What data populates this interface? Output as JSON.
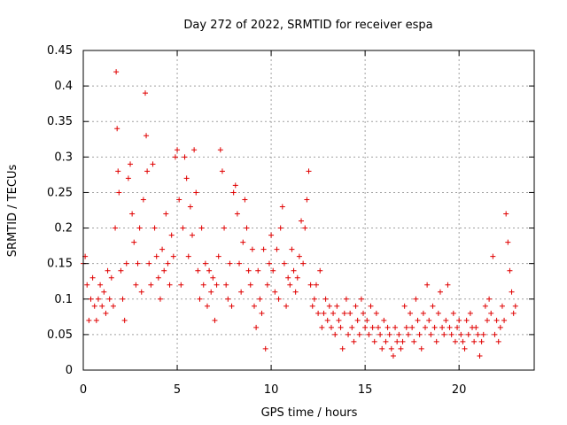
{
  "chart_data": {
    "type": "scatter",
    "title": "Day 272 of 2022, SRMTID for receiver espa",
    "xlabel": "GPS time / hours",
    "ylabel": "SRMTID / TECUs",
    "xlim": [
      0,
      24
    ],
    "ylim": [
      0,
      0.45
    ],
    "xticks": [
      0,
      5,
      10,
      15,
      20
    ],
    "xtick_labels": [
      "0",
      "5",
      "10",
      "15",
      "20"
    ],
    "yticks": [
      0,
      0.05,
      0.1,
      0.15,
      0.2,
      0.25,
      0.3,
      0.35,
      0.4,
      0.45
    ],
    "ytick_labels": [
      "0",
      "0.05",
      "0.1",
      "0.15",
      "0.2",
      "0.25",
      "0.3",
      "0.35",
      "0.4",
      "0.45"
    ],
    "grid": true,
    "marker": "+",
    "color": "#e00000",
    "series": [
      {
        "name": "SRMTID",
        "x": [
          0.0,
          0.1,
          0.2,
          0.3,
          0.4,
          0.5,
          0.6,
          0.7,
          0.8,
          0.9,
          1.0,
          1.1,
          1.2,
          1.3,
          1.4,
          1.5,
          1.6,
          1.7,
          1.75,
          1.8,
          1.85,
          1.9,
          2.0,
          2.1,
          2.2,
          2.3,
          2.4,
          2.5,
          2.6,
          2.7,
          2.8,
          2.9,
          3.0,
          3.1,
          3.2,
          3.3,
          3.35,
          3.4,
          3.5,
          3.6,
          3.7,
          3.8,
          3.9,
          4.0,
          4.1,
          4.2,
          4.3,
          4.4,
          4.5,
          4.6,
          4.7,
          4.8,
          4.9,
          5.0,
          5.1,
          5.2,
          5.3,
          5.4,
          5.5,
          5.6,
          5.7,
          5.8,
          5.9,
          6.0,
          6.1,
          6.2,
          6.3,
          6.4,
          6.5,
          6.6,
          6.7,
          6.8,
          6.9,
          7.0,
          7.1,
          7.2,
          7.3,
          7.4,
          7.5,
          7.6,
          7.7,
          7.8,
          7.9,
          8.0,
          8.1,
          8.2,
          8.3,
          8.4,
          8.5,
          8.6,
          8.7,
          8.8,
          8.9,
          9.0,
          9.1,
          9.2,
          9.3,
          9.4,
          9.5,
          9.6,
          9.7,
          9.8,
          9.9,
          10.0,
          10.1,
          10.2,
          10.3,
          10.4,
          10.5,
          10.6,
          10.7,
          10.8,
          10.9,
          11.0,
          11.1,
          11.2,
          11.3,
          11.4,
          11.5,
          11.6,
          11.7,
          11.8,
          11.9,
          12.0,
          12.1,
          12.2,
          12.3,
          12.4,
          12.5,
          12.6,
          12.7,
          12.8,
          12.9,
          13.0,
          13.1,
          13.2,
          13.3,
          13.4,
          13.5,
          13.6,
          13.7,
          13.8,
          13.9,
          14.0,
          14.1,
          14.2,
          14.3,
          14.4,
          14.5,
          14.6,
          14.7,
          14.8,
          14.9,
          15.0,
          15.1,
          15.2,
          15.3,
          15.4,
          15.5,
          15.6,
          15.7,
          15.8,
          15.9,
          16.0,
          16.1,
          16.2,
          16.3,
          16.4,
          16.5,
          16.6,
          16.7,
          16.8,
          16.9,
          17.0,
          17.1,
          17.2,
          17.3,
          17.4,
          17.5,
          17.6,
          17.7,
          17.8,
          17.9,
          18.0,
          18.1,
          18.2,
          18.3,
          18.4,
          18.5,
          18.6,
          18.7,
          18.8,
          18.9,
          19.0,
          19.1,
          19.2,
          19.3,
          19.4,
          19.5,
          19.6,
          19.7,
          19.8,
          19.9,
          20.0,
          20.1,
          20.2,
          20.3,
          20.4,
          20.5,
          20.6,
          20.7,
          20.8,
          20.9,
          21.0,
          21.1,
          21.2,
          21.3,
          21.4,
          21.5,
          21.6,
          21.7,
          21.8,
          21.9,
          22.0,
          22.1,
          22.2,
          22.3,
          22.4,
          22.5,
          22.6,
          22.7,
          22.8,
          22.9,
          23.0
        ],
        "y": [
          0.15,
          0.16,
          0.12,
          0.07,
          0.1,
          0.13,
          0.09,
          0.07,
          0.1,
          0.12,
          0.09,
          0.11,
          0.08,
          0.14,
          0.1,
          0.13,
          0.09,
          0.2,
          0.42,
          0.34,
          0.28,
          0.25,
          0.14,
          0.1,
          0.07,
          0.15,
          0.27,
          0.29,
          0.22,
          0.18,
          0.12,
          0.15,
          0.2,
          0.11,
          0.24,
          0.39,
          0.33,
          0.28,
          0.15,
          0.12,
          0.29,
          0.2,
          0.16,
          0.13,
          0.1,
          0.17,
          0.14,
          0.22,
          0.15,
          0.12,
          0.19,
          0.16,
          0.3,
          0.31,
          0.24,
          0.12,
          0.2,
          0.3,
          0.27,
          0.16,
          0.23,
          0.19,
          0.31,
          0.25,
          0.14,
          0.1,
          0.2,
          0.12,
          0.15,
          0.09,
          0.14,
          0.11,
          0.13,
          0.07,
          0.12,
          0.16,
          0.31,
          0.28,
          0.2,
          0.12,
          0.1,
          0.15,
          0.09,
          0.25,
          0.26,
          0.22,
          0.15,
          0.11,
          0.18,
          0.24,
          0.2,
          0.14,
          0.12,
          0.17,
          0.09,
          0.06,
          0.14,
          0.1,
          0.08,
          0.17,
          0.03,
          0.12,
          0.15,
          0.19,
          0.14,
          0.11,
          0.17,
          0.1,
          0.2,
          0.23,
          0.15,
          0.09,
          0.13,
          0.12,
          0.17,
          0.14,
          0.11,
          0.13,
          0.16,
          0.21,
          0.15,
          0.2,
          0.24,
          0.28,
          0.12,
          0.09,
          0.1,
          0.12,
          0.08,
          0.14,
          0.06,
          0.08,
          0.1,
          0.07,
          0.09,
          0.06,
          0.08,
          0.05,
          0.09,
          0.07,
          0.06,
          0.03,
          0.08,
          0.1,
          0.05,
          0.08,
          0.06,
          0.04,
          0.09,
          0.07,
          0.05,
          0.1,
          0.08,
          0.06,
          0.07,
          0.05,
          0.09,
          0.06,
          0.04,
          0.08,
          0.06,
          0.05,
          0.03,
          0.07,
          0.04,
          0.06,
          0.05,
          0.03,
          0.02,
          0.06,
          0.04,
          0.05,
          0.03,
          0.04,
          0.09,
          0.06,
          0.05,
          0.08,
          0.06,
          0.04,
          0.1,
          0.07,
          0.05,
          0.03,
          0.08,
          0.06,
          0.12,
          0.07,
          0.05,
          0.09,
          0.06,
          0.04,
          0.08,
          0.11,
          0.06,
          0.05,
          0.07,
          0.12,
          0.06,
          0.05,
          0.08,
          0.04,
          0.06,
          0.07,
          0.05,
          0.04,
          0.03,
          0.07,
          0.05,
          0.08,
          0.06,
          0.04,
          0.06,
          0.05,
          0.02,
          0.04,
          0.05,
          0.09,
          0.07,
          0.1,
          0.08,
          0.16,
          0.05,
          0.07,
          0.04,
          0.06,
          0.09,
          0.07,
          0.22,
          0.18,
          0.14,
          0.11,
          0.08,
          0.09
        ]
      }
    ]
  }
}
